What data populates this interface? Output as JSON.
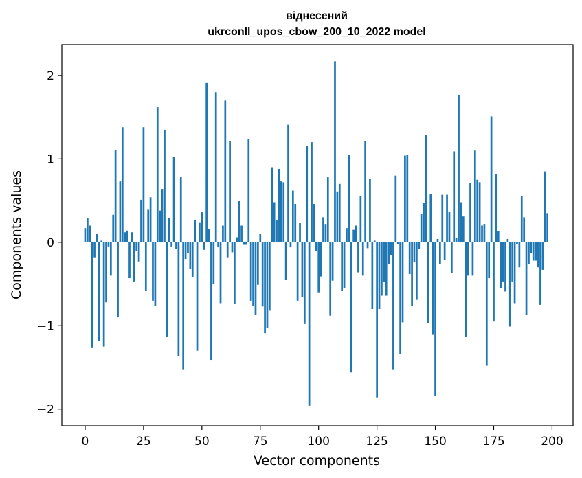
{
  "chart_data": {
    "type": "bar",
    "title": [
      "віднесений",
      "ukrconll_upos_cbow_200_10_2022 model"
    ],
    "xlabel": "Vector components",
    "ylabel": "Components values",
    "xlim": [
      -10,
      209
    ],
    "ylim": [
      -2.2,
      2.37
    ],
    "xticks": [
      0,
      25,
      50,
      75,
      100,
      125,
      150,
      175,
      200
    ],
    "yticks": [
      -2,
      -1,
      0,
      1,
      2
    ],
    "ytick_labels": [
      "−2",
      "−1",
      "0",
      "1",
      "2"
    ],
    "bar_color": "#1f77b4",
    "values": [
      0.17,
      0.29,
      0.2,
      -1.26,
      -0.18,
      0.1,
      -1.18,
      0.02,
      -1.25,
      -0.72,
      -0.05,
      -0.4,
      0.33,
      1.11,
      -0.9,
      0.73,
      1.38,
      0.12,
      0.14,
      -0.43,
      0.12,
      -0.47,
      -0.1,
      -0.23,
      0.51,
      1.38,
      -0.58,
      0.39,
      0.54,
      -0.7,
      -0.76,
      1.62,
      0.38,
      0.64,
      1.35,
      -1.13,
      0.29,
      -0.05,
      1.02,
      -0.08,
      -1.36,
      0.78,
      -1.53,
      -0.2,
      -0.13,
      -0.32,
      -0.42,
      0.27,
      -1.3,
      0.24,
      0.36,
      -0.09,
      1.91,
      0.16,
      -1.41,
      -0.5,
      1.8,
      -0.06,
      -0.73,
      0.2,
      1.7,
      -0.18,
      1.21,
      -0.12,
      -0.74,
      0.06,
      0.5,
      0.2,
      -0.03,
      -0.03,
      1.24,
      -0.7,
      -0.76,
      -0.87,
      -0.51,
      0.1,
      -0.77,
      -1.09,
      -1.03,
      -0.82,
      0.9,
      0.48,
      0.27,
      0.88,
      0.73,
      0.72,
      -0.45,
      1.41,
      -0.06,
      0.62,
      0.46,
      -0.7,
      0.23,
      -0.66,
      -0.98,
      1.16,
      -1.96,
      1.2,
      0.46,
      -0.1,
      -0.6,
      -0.41,
      0.3,
      0.22,
      0.78,
      -0.88,
      -0.46,
      2.17,
      0.61,
      0.7,
      -0.58,
      -0.55,
      0.17,
      1.05,
      -1.56,
      0.15,
      0.2,
      -0.36,
      0.55,
      -0.4,
      1.21,
      -0.07,
      0.76,
      -0.8,
      0.02,
      -1.86,
      -0.8,
      -0.64,
      -0.48,
      -0.64,
      -0.26,
      -0.15,
      -1.53,
      0.8,
      -0.02,
      -1.34,
      -0.96,
      1.04,
      1.05,
      -0.38,
      -0.76,
      -0.24,
      -0.69,
      -0.08,
      0.34,
      0.47,
      1.29,
      -0.97,
      0.58,
      -1.11,
      -1.84,
      0.04,
      -0.26,
      0.57,
      -0.21,
      0.57,
      0.36,
      -0.37,
      1.09,
      0.05,
      1.77,
      0.48,
      0.31,
      -1.13,
      -0.4,
      0.71,
      -0.4,
      1.1,
      0.75,
      0.72,
      0.2,
      0.22,
      -1.48,
      -0.43,
      1.51,
      -0.95,
      0.82,
      0.13,
      -0.55,
      -0.47,
      -0.59,
      0.04,
      -1.01,
      -0.47,
      -0.73,
      -0.02,
      -0.3,
      0.55,
      0.3,
      -0.87,
      -0.26,
      -0.13,
      -0.22,
      -0.22,
      -0.3,
      -0.75,
      -0.33,
      0.85,
      0.35
    ]
  }
}
